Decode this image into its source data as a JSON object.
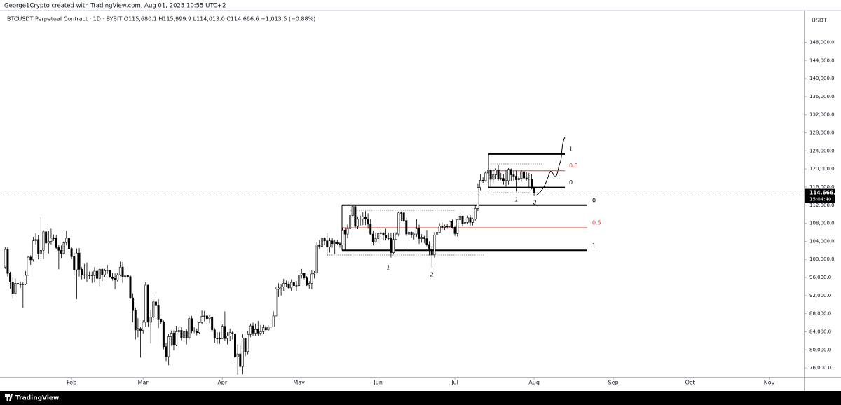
{
  "chart_data": {
    "type": "candlestick",
    "title": "George1Crypto created with TradingView.com, Aug 01, 2025 10:55 UTC+2",
    "legend_text": "BTCUSDT Perpetual Contract · 1D · BYBIT  O115,680.1  H115,999.9  L114,013.0  C114,666.6  −1,013.5 (−0.88%)",
    "currency": "USDT",
    "last_label": "114,666.6",
    "countdown": "15:04:40",
    "footer": "TradingView",
    "up_color": "#ffffff",
    "down_color": "#000000",
    "xlim": [
      -2,
      312
    ],
    "xticks": [
      {
        "value": 26,
        "label": "Feb"
      },
      {
        "value": 54,
        "label": "Mar"
      },
      {
        "value": 85,
        "label": "Apr"
      },
      {
        "value": 115,
        "label": "May"
      },
      {
        "value": 146,
        "label": "Jun"
      },
      {
        "value": 176,
        "label": "Jul"
      },
      {
        "value": 207,
        "label": "Aug"
      },
      {
        "value": 238,
        "label": "Sep"
      },
      {
        "value": 268,
        "label": "Oct"
      },
      {
        "value": 299,
        "label": "Nov"
      }
    ],
    "ylim": [
      74000,
      155200
    ],
    "yticks": [
      {
        "value": 76000,
        "label": "76,000.0"
      },
      {
        "value": 80000,
        "label": "80,000.0"
      },
      {
        "value": 84000,
        "label": "84,000.0"
      },
      {
        "value": 88000,
        "label": "88,000.0"
      },
      {
        "value": 92000,
        "label": "92,000.0"
      },
      {
        "value": 96000,
        "label": "96,000.0"
      },
      {
        "value": 100000,
        "label": "100,000.0"
      },
      {
        "value": 104000,
        "label": "104,000.0"
      },
      {
        "value": 108000,
        "label": "108,000.0"
      },
      {
        "value": 112000,
        "label": "112,000.0"
      },
      {
        "value": 116000,
        "label": "116,000.0"
      },
      {
        "value": 120000,
        "label": "120,000.0"
      },
      {
        "value": 124000,
        "label": "124,000.0"
      },
      {
        "value": 128000,
        "label": "128,000.0"
      },
      {
        "value": 132000,
        "label": "132,000.0"
      },
      {
        "value": 136000,
        "label": "136,000.0"
      },
      {
        "value": 140000,
        "label": "140,000.0"
      },
      {
        "value": 144000,
        "label": "144,000.0"
      },
      {
        "value": 148000,
        "label": "148,000.0"
      }
    ],
    "fib_levels": [
      [
        {
          "value": 112000,
          "label": "0"
        },
        {
          "value": 107000,
          "label": "0.5"
        },
        {
          "value": 102000,
          "label": "1"
        }
      ],
      [
        {
          "value": 115900,
          "label": "0"
        },
        {
          "value": 119600,
          "label": "0.5"
        },
        {
          "value": 123300,
          "label": "1"
        }
      ]
    ],
    "wave_labels": [
      "1",
      "2",
      "1",
      "2"
    ],
    "open": [
      98300,
      102200,
      96900,
      95000,
      92500,
      94700,
      94500,
      94500,
      94500,
      96500,
      100500,
      99900,
      104100,
      104400,
      101200,
      102000,
      106100,
      103600,
      104000,
      104700,
      104700,
      102600,
      102000,
      101300,
      103700,
      104700,
      102400,
      100600,
      97700,
      101400,
      97800,
      96600,
      96600,
      96500,
      96500,
      96400,
      97400,
      95800,
      97800,
      96600,
      97500,
      97600,
      96100,
      95800,
      95500,
      96600,
      98300,
      96200,
      96500,
      96200,
      91500,
      88700,
      84400,
      84700,
      84300,
      86100,
      94300,
      86100,
      87200,
      90600,
      89900,
      86800,
      86200,
      80700,
      78500,
      82900,
      83700,
      81100,
      84000,
      84300,
      82600,
      84000,
      82700,
      86900,
      84200,
      84100,
      83800,
      86000,
      87400,
      87500,
      86900,
      87200,
      84400,
      82600,
      82400,
      82500,
      85200,
      82500,
      83100,
      83800,
      83500,
      78400,
      79100,
      76300,
      82600,
      79600,
      83400,
      85300,
      83700,
      84500,
      83700,
      84000,
      84900,
      84400,
      85100,
      85100,
      87500,
      93400,
      93700,
      93900,
      94700,
      94600,
      93700,
      94900,
      94200,
      94200,
      96500,
      96900,
      95900,
      94300,
      94700,
      96800,
      97000,
      103200,
      102900,
      104700,
      104100,
      102800,
      104100,
      103500,
      103700,
      103500,
      103200,
      106500,
      105600,
      106800,
      109700,
      111700,
      107300,
      108900,
      109000,
      109400,
      108900,
      107800,
      105600,
      103900,
      104600,
      105700,
      105900,
      105400,
      104700,
      104700,
      101500,
      104400,
      105600,
      110300,
      110300,
      108600,
      105600,
      106000,
      105400,
      105600,
      106800,
      104600,
      104900,
      104600,
      103300,
      102200,
      101000,
      105400,
      106000,
      107400,
      107100,
      107300,
      107300,
      108400,
      107100,
      105700,
      108800,
      109600,
      107900,
      108200,
      109200,
      108200,
      108900,
      111300,
      115900,
      117500,
      117400,
      119100,
      119800,
      117700,
      118700,
      119800,
      117900,
      117900,
      117300,
      117400,
      119900,
      118700,
      118400,
      117600,
      117900,
      119400,
      118000,
      117800,
      117800,
      115680.1
    ],
    "high": [
      102700,
      102700,
      97300,
      96000,
      95800,
      95300,
      95100,
      95000,
      97400,
      100800,
      100900,
      105000,
      105800,
      105300,
      109400,
      106500,
      107000,
      106300,
      106800,
      105500,
      105400,
      103200,
      103100,
      104000,
      106400,
      106000,
      102800,
      101500,
      102400,
      102500,
      98300,
      99000,
      99300,
      97300,
      97300,
      98300,
      98500,
      98100,
      98000,
      97900,
      98800,
      97700,
      97000,
      96900,
      97000,
      99500,
      99400,
      96900,
      96600,
      96500,
      92500,
      89300,
      87000,
      85100,
      86600,
      95000,
      94400,
      88900,
      91100,
      92800,
      91200,
      86900,
      86500,
      81500,
      83600,
      84300,
      84300,
      85300,
      85100,
      85000,
      84800,
      84600,
      87400,
      87500,
      85000,
      84700,
      86200,
      88700,
      88600,
      88300,
      87800,
      87500,
      84800,
      83900,
      83900,
      85600,
      88500,
      83900,
      84700,
      84200,
      83800,
      81200,
      80900,
      83500,
      82700,
      84200,
      85800,
      86000,
      85800,
      86400,
      85500,
      85500,
      85400,
      85400,
      86000,
      88500,
      93800,
      94700,
      94500,
      95700,
      95300,
      95200,
      95600,
      95400,
      95200,
      97400,
      97900,
      96900,
      96300,
      95200,
      97700,
      97400,
      103800,
      104300,
      104900,
      104900,
      105800,
      104800,
      104700,
      104300,
      104300,
      103900,
      107100,
      107000,
      107700,
      110700,
      112000,
      111900,
      109500,
      109700,
      110400,
      110700,
      110200,
      108900,
      106400,
      105900,
      105900,
      106800,
      106000,
      106800,
      105900,
      105900,
      105900,
      106000,
      110600,
      110600,
      110400,
      109300,
      106200,
      106200,
      106000,
      108900,
      107700,
      105600,
      105200,
      106500,
      104000,
      103000,
      106000,
      106100,
      108000,
      108200,
      107700,
      107800,
      108500,
      108800,
      107500,
      109000,
      110500,
      109700,
      109000,
      109700,
      109800,
      109200,
      111900,
      116800,
      118900,
      118200,
      119500,
      123200,
      120000,
      119900,
      120100,
      120900,
      119100,
      118900,
      119700,
      120200,
      120100,
      119600,
      119600,
      118400,
      119800,
      119800,
      119300,
      119100,
      118900,
      115999.9
    ],
    "low": [
      97900,
      96200,
      93500,
      91300,
      92200,
      93800,
      93700,
      89300,
      94300,
      96400,
      98800,
      99500,
      103300,
      100000,
      99600,
      100100,
      101500,
      101300,
      103300,
      104100,
      102200,
      97800,
      100300,
      101000,
      103100,
      101400,
      100100,
      96400,
      91200,
      96200,
      95600,
      95700,
      95000,
      95700,
      94800,
      94900,
      94900,
      94100,
      95200,
      96100,
      96800,
      95900,
      95300,
      93400,
      95100,
      96300,
      94800,
      95700,
      95800,
      91200,
      86100,
      82300,
      82800,
      78300,
      83600,
      85100,
      85100,
      81400,
      86700,
      87800,
      84800,
      85700,
      80100,
      77500,
      76600,
      80900,
      79900,
      80800,
      83600,
      82100,
      82400,
      81200,
      82300,
      83700,
      83700,
      83200,
      83500,
      85600,
      86300,
      85800,
      85900,
      83900,
      81600,
      81300,
      81300,
      82400,
      82000,
      81200,
      81900,
      82300,
      77100,
      74500,
      76100,
      74600,
      78600,
      79000,
      82800,
      83000,
      83100,
      83100,
      83200,
      83600,
      84000,
      84200,
      84600,
      85100,
      87400,
      91700,
      92000,
      93000,
      93900,
      93400,
      92900,
      93600,
      92900,
      94100,
      95800,
      95600,
      94100,
      93500,
      93400,
      95800,
      96800,
      102300,
      102400,
      103300,
      100700,
      101500,
      102600,
      101200,
      103100,
      102600,
      103100,
      102000,
      104700,
      106500,
      109300,
      106800,
      106700,
      107500,
      107600,
      107600,
      106800,
      105300,
      103100,
      103700,
      103900,
      103800,
      104200,
      104200,
      104200,
      100400,
      101100,
      104200,
      105100,
      108400,
      108300,
      105200,
      102700,
      104800,
      104400,
      105000,
      103400,
      103700,
      103600,
      102900,
      100900,
      98200,
      100400,
      104700,
      105900,
      106600,
      106500,
      106800,
      107100,
      106800,
      105200,
      105100,
      108300,
      107300,
      107800,
      107800,
      107500,
      107500,
      108400,
      110700,
      115300,
      116900,
      117200,
      119000,
      115700,
      116900,
      117800,
      117400,
      117500,
      116500,
      116100,
      116500,
      117300,
      117300,
      115000,
      117200,
      117100,
      117500,
      117400,
      115700,
      115500,
      114013.0
    ],
    "close": [
      102200,
      96900,
      95000,
      92500,
      94700,
      94500,
      94500,
      94500,
      96500,
      100500,
      99900,
      104100,
      104400,
      101200,
      102000,
      106100,
      103600,
      104000,
      104700,
      104700,
      102600,
      102000,
      101300,
      103700,
      104700,
      102400,
      100600,
      97700,
      101400,
      97800,
      96600,
      96600,
      96500,
      96500,
      96400,
      97400,
      95800,
      97800,
      96600,
      97500,
      97600,
      96100,
      95800,
      95500,
      96600,
      98300,
      96200,
      96500,
      96200,
      91500,
      88700,
      84400,
      84700,
      84300,
      86100,
      94300,
      86100,
      87200,
      90600,
      89900,
      86800,
      86200,
      80700,
      78500,
      82900,
      83700,
      81100,
      84000,
      84300,
      82600,
      84000,
      82700,
      86900,
      84200,
      84100,
      83800,
      86000,
      87400,
      87500,
      86900,
      87200,
      84400,
      82600,
      82400,
      82500,
      85200,
      82500,
      83100,
      83800,
      83500,
      78400,
      79100,
      76300,
      82600,
      79600,
      83400,
      85300,
      83700,
      84500,
      83700,
      84000,
      84900,
      84400,
      85100,
      85100,
      87500,
      93400,
      93700,
      93900,
      94700,
      94600,
      93700,
      94900,
      94200,
      94200,
      96500,
      96900,
      95900,
      94300,
      94700,
      96800,
      97000,
      103200,
      102900,
      104700,
      104100,
      102800,
      104100,
      103500,
      103700,
      103500,
      103200,
      106500,
      105600,
      106800,
      109700,
      111700,
      107300,
      108900,
      109000,
      109400,
      108900,
      107800,
      105600,
      103900,
      104600,
      105700,
      105900,
      105400,
      104700,
      104700,
      101500,
      104400,
      105600,
      110300,
      110300,
      108600,
      105600,
      106000,
      105400,
      105600,
      106800,
      104600,
      104900,
      104600,
      103300,
      102200,
      101000,
      105400,
      106000,
      107400,
      107100,
      107300,
      107300,
      108400,
      107100,
      105700,
      108800,
      109600,
      107900,
      108200,
      109200,
      108200,
      108900,
      111300,
      115900,
      117500,
      117400,
      119100,
      119800,
      117700,
      118700,
      119800,
      117900,
      117900,
      117300,
      117400,
      119900,
      118700,
      118400,
      117600,
      117900,
      119400,
      118000,
      117800,
      117800,
      115680.1,
      114666.6
    ]
  }
}
